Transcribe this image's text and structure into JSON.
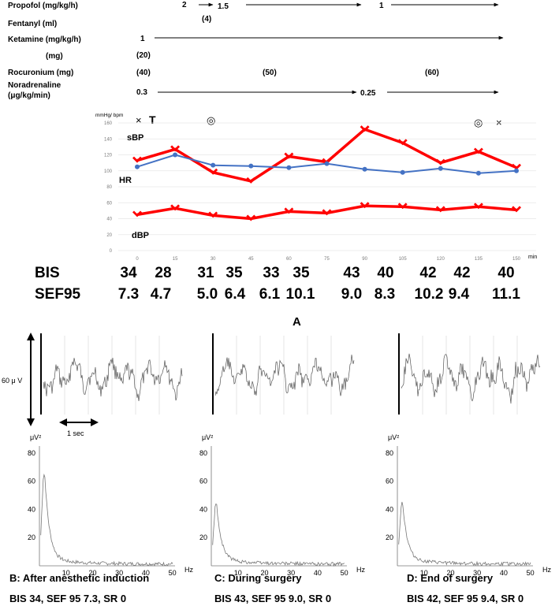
{
  "drugs": [
    {
      "label": "Propofol (mg/kg/h)",
      "events": [
        "2",
        "1.5",
        "1"
      ]
    },
    {
      "label": "Fentanyl (ml)",
      "events": [
        "(4)"
      ]
    },
    {
      "label": "Ketamine (mg/kg/h)",
      "events": [
        "1"
      ]
    },
    {
      "label": "(mg)",
      "events": [
        "(20)"
      ]
    },
    {
      "label": "Rocuronium (mg)",
      "events": [
        "(40)",
        "(50)",
        "(60)"
      ]
    },
    {
      "label": "Noradrenaline",
      "label2": "(μg/kg/min)",
      "events": [
        "0.3",
        "0.25"
      ]
    }
  ],
  "markers": {
    "x": "×",
    "t": "T",
    "circle": "◎"
  },
  "chart_data": {
    "type": "line",
    "ylabel": "mmHg/ bpm",
    "xlabel": "min",
    "ylim": [
      0,
      160
    ],
    "yticks": [
      0,
      20,
      40,
      60,
      80,
      100,
      120,
      140,
      160
    ],
    "x": [
      0,
      15,
      30,
      45,
      60,
      75,
      90,
      105,
      120,
      135,
      150
    ],
    "series": [
      {
        "name": "sBP",
        "color": "#ff0000",
        "values": [
          113,
          127,
          98,
          87,
          118,
          111,
          152,
          135,
          110,
          124,
          104
        ]
      },
      {
        "name": "HR",
        "color": "#4472c4",
        "values": [
          105,
          120,
          107,
          106,
          104,
          109,
          102,
          98,
          103,
          97,
          100
        ]
      },
      {
        "name": "dBP",
        "color": "#ff0000",
        "values": [
          45,
          53,
          44,
          40,
          49,
          47,
          56,
          55,
          51,
          55,
          51
        ]
      }
    ]
  },
  "bis": {
    "label": "BIS",
    "values": [
      "34",
      "28",
      "31",
      "35",
      "33",
      "35",
      "43",
      "40",
      "42",
      "42",
      "40"
    ]
  },
  "sef": {
    "label": "SEF95",
    "values": [
      "7.3",
      "4.7",
      "5.0",
      "6.4",
      "6.1",
      "10.1",
      "9.0",
      "8.3",
      "10.2",
      "9.4",
      "11.1"
    ]
  },
  "panel_a_label": "A",
  "eeg": {
    "scale_label": "60 μ V",
    "time_label": "1 sec",
    "spectrum_ylabel": "μV²",
    "spectrum_xlabel": "Hz",
    "spectrum_yticks": [
      "20",
      "40",
      "60",
      "80"
    ],
    "spectrum_xticks": [
      "10",
      "20",
      "30",
      "40",
      "50"
    ]
  },
  "panels": [
    {
      "title": "B: After anesthetic induction",
      "caption": "BIS 34, SEF 95 7.3, SR 0"
    },
    {
      "title": "C: During surgery",
      "caption": "BIS 43, SEF 95 9.0, SR 0"
    },
    {
      "title": "D: End of surgery",
      "caption": "BIS 42, SEF 95 9.4, SR 0"
    }
  ]
}
